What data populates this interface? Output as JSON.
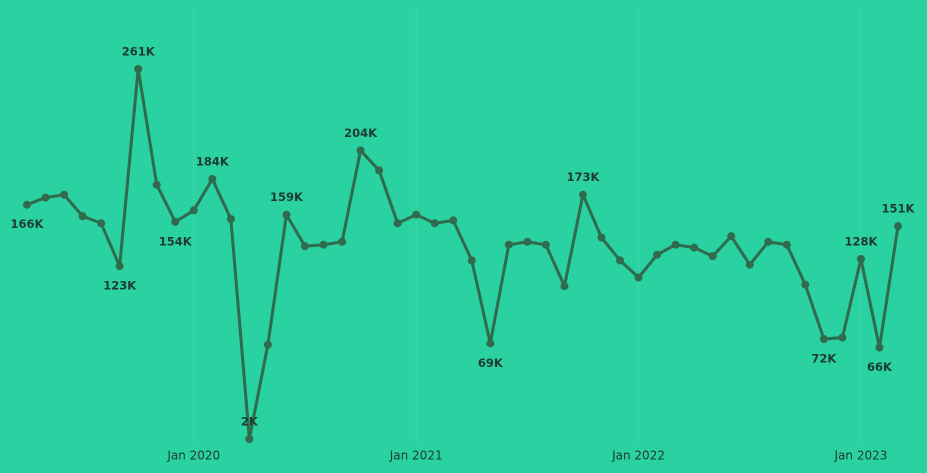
{
  "chart_data": {
    "type": "line",
    "x": [
      "2019-04",
      "2019-05",
      "2019-06",
      "2019-07",
      "2019-08",
      "2019-09",
      "2019-10",
      "2019-11",
      "2019-12",
      "2020-01",
      "2020-02",
      "2020-03",
      "2020-04",
      "2020-05",
      "2020-06",
      "2020-07",
      "2020-08",
      "2020-09",
      "2020-10",
      "2020-11",
      "2020-12",
      "2021-01",
      "2021-02",
      "2021-03",
      "2021-04",
      "2021-05",
      "2021-06",
      "2021-07",
      "2021-08",
      "2021-09",
      "2021-10",
      "2021-11",
      "2021-12",
      "2022-01",
      "2022-02",
      "2022-03",
      "2022-04",
      "2022-05",
      "2022-06",
      "2022-07",
      "2022-08",
      "2022-09",
      "2022-10",
      "2022-11",
      "2022-12",
      "2023-01",
      "2023-02",
      "2023-03"
    ],
    "series": [
      {
        "color": "#2f6b4c",
        "values": [
          166,
          171,
          173,
          158,
          153,
          123,
          261,
          180,
          154,
          162,
          184,
          156,
          2,
          68,
          159,
          137,
          138,
          140,
          204,
          190,
          153,
          159,
          153,
          155,
          127,
          69,
          138,
          140,
          138,
          109,
          173,
          143,
          127,
          115,
          131,
          138,
          136,
          130,
          144,
          124,
          140,
          138,
          110,
          72,
          73,
          128,
          66,
          151
        ],
        "value_labels": [
          "166K",
          null,
          null,
          null,
          null,
          "123K",
          "261K",
          null,
          "154K",
          null,
          "184K",
          null,
          "2K",
          null,
          "159K",
          null,
          null,
          null,
          "204K",
          null,
          null,
          null,
          null,
          null,
          null,
          "69K",
          null,
          null,
          null,
          null,
          "173K",
          null,
          null,
          null,
          null,
          null,
          null,
          null,
          null,
          null,
          null,
          null,
          null,
          "72K",
          null,
          "128K",
          "66K",
          "151K"
        ]
      }
    ],
    "xticks": [
      {
        "value": "2020-01",
        "label": "Jan 2020"
      },
      {
        "value": "2021-01",
        "label": "Jan 2021"
      },
      {
        "value": "2022-01",
        "label": "Jan 2022"
      },
      {
        "value": "2023-01",
        "label": "Jan 2023"
      }
    ],
    "grid": true
  }
}
